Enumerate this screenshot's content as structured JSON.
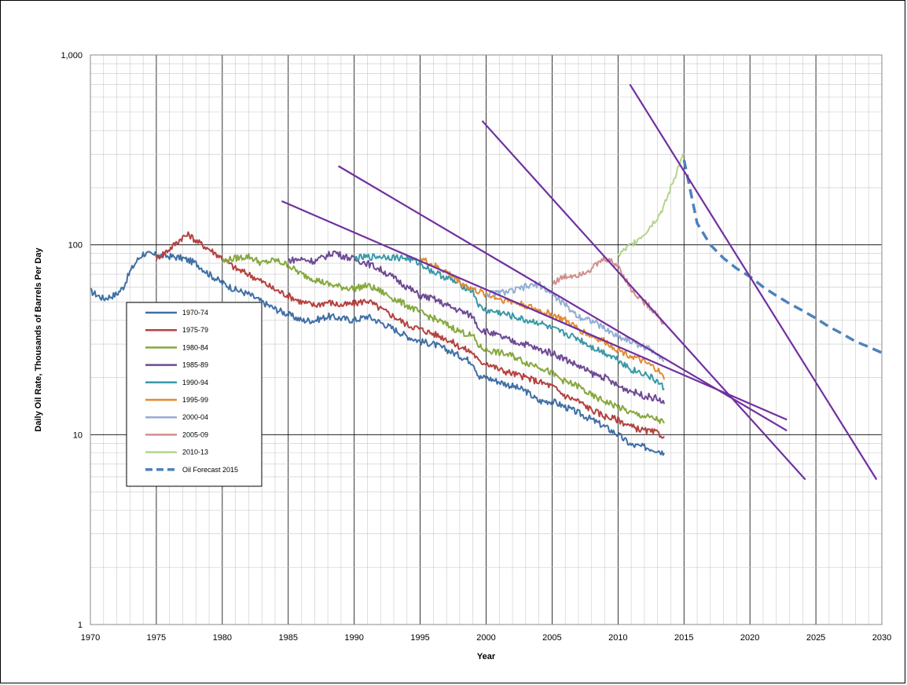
{
  "chart_data": {
    "type": "line",
    "title": "",
    "xlabel": "Year",
    "ylabel": "Daily Oil Rate, Thousands of Barrels Per Day",
    "xlim": [
      1970,
      2030
    ],
    "ylim": [
      1,
      1000
    ],
    "yscale": "log",
    "grid": true,
    "x_ticks": [
      "1970",
      "1975",
      "1980",
      "1985",
      "1990",
      "1995",
      "2000",
      "2005",
      "2010",
      "2015",
      "2020",
      "2025",
      "2030"
    ],
    "y_ticks": [
      "1",
      "10",
      "100",
      "1,000"
    ],
    "legend_position": "left",
    "series": [
      {
        "name": "1970-74",
        "color": "#3f6fa5",
        "style": "solid",
        "x": [
          1970,
          1971,
          1972,
          1972.5,
          1973,
          1973.5,
          1974,
          1975,
          1976,
          1977,
          1978,
          1979,
          1980,
          1981,
          1982,
          1983,
          1984,
          1985,
          1986,
          1987,
          1988,
          1989,
          1990,
          1991,
          1992,
          1993,
          1994,
          1995,
          1996,
          1997,
          1998,
          1999,
          1999.5,
          2000,
          2001,
          2002,
          2003,
          2004,
          2005,
          2006,
          2007,
          2008,
          2009,
          2010,
          2011,
          2012,
          2013,
          2013.5
        ],
        "values": [
          57,
          52,
          55,
          60,
          72,
          82,
          90,
          88,
          87,
          85,
          80,
          70,
          63,
          58,
          55,
          50,
          46,
          43,
          40,
          40,
          42,
          41,
          40,
          42,
          39,
          36,
          33,
          31,
          30,
          28,
          26,
          24,
          20,
          20,
          19,
          18,
          17,
          15,
          15,
          14,
          13,
          12,
          11,
          10,
          8.8,
          8.6,
          8.3,
          8
        ]
      },
      {
        "name": "1975-79",
        "color": "#b5413f",
        "style": "solid",
        "x": [
          1975,
          1976,
          1977,
          1977.5,
          1978,
          1979,
          1980,
          1981,
          1982,
          1983,
          1984,
          1985,
          1986,
          1987,
          1988,
          1989,
          1990,
          1991,
          1992,
          1993,
          1994,
          1995,
          1996,
          1997,
          1998,
          1999,
          1999.5,
          2000,
          2001,
          2002,
          2003,
          2004,
          2005,
          2006,
          2007,
          2008,
          2009,
          2010,
          2011,
          2012,
          2013,
          2013.5
        ],
        "values": [
          85,
          95,
          110,
          113,
          105,
          95,
          85,
          75,
          70,
          64,
          58,
          54,
          50,
          48,
          50,
          48,
          49,
          51,
          46,
          42,
          38,
          36,
          34,
          32,
          29,
          27,
          24,
          24,
          22,
          21,
          20,
          19,
          18,
          16,
          15,
          13.5,
          12.5,
          12,
          11,
          10.5,
          10.2,
          9.8
        ]
      },
      {
        "name": "1980-84",
        "color": "#86a83e",
        "style": "solid",
        "x": [
          1980,
          1981,
          1982,
          1983,
          1984,
          1985,
          1986,
          1987,
          1988,
          1989,
          1990,
          1991,
          1992,
          1993,
          1994,
          1995,
          1996,
          1997,
          1998,
          1999,
          1999.5,
          2000,
          2001,
          2002,
          2003,
          2004,
          2005,
          2006,
          2007,
          2008,
          2009,
          2010,
          2011,
          2012,
          2013,
          2013.5
        ],
        "values": [
          82,
          85,
          87,
          80,
          83,
          78,
          70,
          66,
          62,
          60,
          59,
          61,
          57,
          52,
          48,
          44,
          41,
          38,
          35,
          33,
          29,
          28,
          27,
          26,
          24,
          23,
          21,
          19,
          18,
          16,
          15,
          14,
          13,
          12.5,
          12,
          11.5
        ]
      },
      {
        "name": "1985-89",
        "color": "#6e4a94",
        "style": "solid",
        "x": [
          1985,
          1986,
          1987,
          1988,
          1988.5,
          1989,
          1990,
          1991,
          1992,
          1993,
          1994,
          1995,
          1996,
          1997,
          1998,
          1999,
          1999.5,
          2000,
          2001,
          2002,
          2003,
          2004,
          2005,
          2006,
          2007,
          2008,
          2009,
          2010,
          2011,
          2012,
          2013,
          2013.5
        ],
        "values": [
          83,
          84,
          82,
          88,
          92,
          88,
          84,
          80,
          74,
          67,
          60,
          54,
          52,
          48,
          45,
          42,
          36,
          35,
          33,
          31,
          30,
          28,
          27,
          25,
          23,
          21,
          20,
          18,
          17,
          16,
          15.5,
          14.5
        ]
      },
      {
        "name": "1990-94",
        "color": "#3a98a8",
        "style": "solid",
        "x": [
          1990,
          1991,
          1992,
          1993,
          1994,
          1995,
          1996,
          1997,
          1998,
          1999,
          1999.5,
          2000,
          2001,
          2002,
          2003,
          2004,
          2005,
          2006,
          2007,
          2008,
          2009,
          2010,
          2011,
          2012,
          2013,
          2013.5
        ],
        "values": [
          85,
          86,
          87,
          86,
          85,
          80,
          72,
          67,
          62,
          57,
          47,
          45,
          44,
          42,
          40,
          39,
          36,
          34,
          32,
          29,
          27,
          25,
          22,
          21,
          19,
          17.5
        ]
      },
      {
        "name": "1995-99",
        "color": "#e48a2f",
        "style": "solid",
        "x": [
          1995,
          1996,
          1997,
          1998,
          1999,
          2000,
          2001,
          2002,
          2003,
          2004,
          2005,
          2006,
          2007,
          2008,
          2009,
          2010,
          2011,
          2012,
          2013,
          2013.5
        ],
        "values": [
          85,
          78,
          72,
          64,
          58,
          55,
          52,
          50,
          48,
          45,
          43,
          40,
          36,
          33,
          31,
          28,
          26,
          24,
          22,
          19.5
        ]
      },
      {
        "name": "2000-04",
        "color": "#93aed3",
        "style": "solid",
        "x": [
          2000,
          2001,
          2002,
          2003,
          2004,
          2005,
          2006,
          2007,
          2008,
          2009,
          2010,
          2011,
          2012,
          2013,
          2013.5
        ],
        "values": [
          55,
          56,
          57,
          60,
          62,
          55,
          48,
          42,
          40,
          36,
          33,
          31,
          29,
          27,
          24.5
        ]
      },
      {
        "name": "2005-09",
        "color": "#d28e8c",
        "style": "solid",
        "x": [
          2005,
          2006,
          2007,
          2008,
          2009,
          2010,
          2011,
          2012,
          2013,
          2013.5
        ],
        "values": [
          63,
          68,
          70,
          75,
          85,
          78,
          58,
          50,
          43,
          38
        ]
      },
      {
        "name": "2010-13",
        "color": "#b4d48e",
        "style": "solid",
        "x": [
          2010,
          2011,
          2012,
          2013,
          2013.5,
          2014,
          2014.5,
          2015
        ],
        "values": [
          88,
          100,
          115,
          140,
          160,
          200,
          250,
          300
        ]
      },
      {
        "name": "Oil Forecast 2015",
        "color": "#4f81bd",
        "style": "dashed",
        "x": [
          2015,
          2016,
          2017,
          2018,
          2019,
          2020,
          2021,
          2022,
          2023,
          2024,
          2025,
          2026,
          2027,
          2028,
          2029,
          2030
        ],
        "values": [
          280,
          130,
          100,
          85,
          75,
          68,
          60,
          54,
          49,
          45,
          41,
          37,
          34,
          31,
          29,
          27
        ]
      }
    ],
    "trend_lines": [
      {
        "color": "#7030a0",
        "x": [
          1984.5,
          2022.8
        ],
        "values": [
          170,
          12
        ]
      },
      {
        "color": "#7030a0",
        "x": [
          1988.8,
          2022.8
        ],
        "values": [
          260,
          10.5
        ]
      },
      {
        "color": "#7030a0",
        "x": [
          1999.7,
          2024.2
        ],
        "values": [
          450,
          5.8
        ]
      },
      {
        "color": "#7030a0",
        "x": [
          2010.9,
          2029.6
        ],
        "values": [
          700,
          5.8
        ]
      }
    ]
  }
}
